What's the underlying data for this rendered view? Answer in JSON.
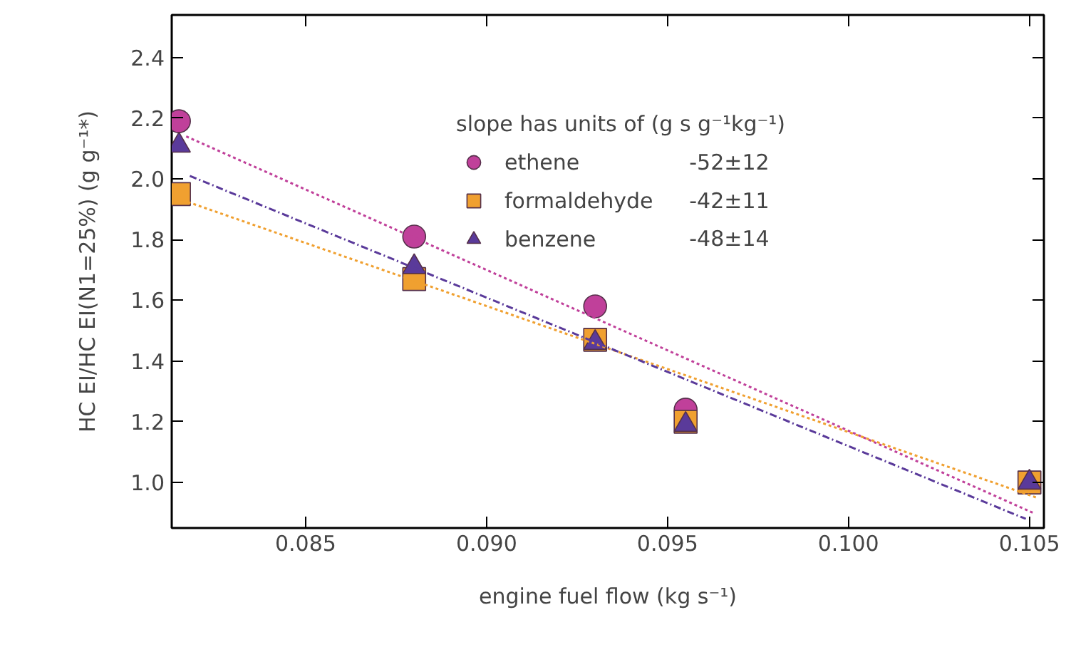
{
  "chart_data": {
    "type": "scatter",
    "xlabel": "engine fuel flow (kg s⁻¹)",
    "ylabel": "HC EI/HC EI(N1=25%) (g g⁻¹*)",
    "legend_title": "slope has units of (g s g⁻¹kg⁻¹)",
    "legend": "top",
    "grid": false,
    "x": [
      0.0815,
      0.088,
      0.093,
      0.0955,
      0.105
    ],
    "xlim": [
      0.0813,
      0.1054
    ],
    "xticks": [
      0.085,
      {
        "value": 0.09,
        "label": "0.090"
      },
      0.095,
      {
        "value": 0.1,
        "label": "0.100"
      },
      0.105
    ],
    "ylim": [
      0.85,
      2.54
    ],
    "yticks": [
      {
        "value": 1,
        "label": "1.0"
      },
      1.2,
      1.4,
      1.6,
      1.8,
      {
        "value": 2,
        "label": "2.0"
      },
      2.2,
      2.4
    ],
    "series": [
      {
        "name": "ethene",
        "color": "#c0409a",
        "marker": "circle",
        "values": [
          2.19,
          1.81,
          1.58,
          1.24,
          null
        ]
      },
      {
        "name": "formaldehyde",
        "color": "#f0a030",
        "marker": "square",
        "values": [
          1.95,
          1.67,
          1.47,
          1.2,
          1.0
        ]
      },
      {
        "name": "benzene",
        "color": "#5a3a9a",
        "marker": "triangle",
        "values": [
          2.11,
          1.71,
          1.46,
          1.19,
          1.0
        ]
      },
      {
        "type": "line",
        "color": "#c0409a",
        "line_style": "dotted",
        "marker": "none",
        "x": [
          0.0817,
          0.1051
        ],
        "values": [
          2.14,
          0.9
        ]
      },
      {
        "type": "line",
        "color": "#f0a030",
        "line_style": "dotted",
        "marker": "none",
        "x": [
          0.0816,
          0.1052
        ],
        "values": [
          1.93,
          0.95
        ]
      },
      {
        "type": "line",
        "color": "#5a3a9a",
        "line_style": "dashed",
        "marker": "none",
        "x": [
          0.0818,
          0.1049
        ],
        "values": [
          2.01,
          0.88
        ]
      }
    ],
    "annotations": [
      "-52±12",
      "-42±11",
      "-48±14"
    ]
  }
}
